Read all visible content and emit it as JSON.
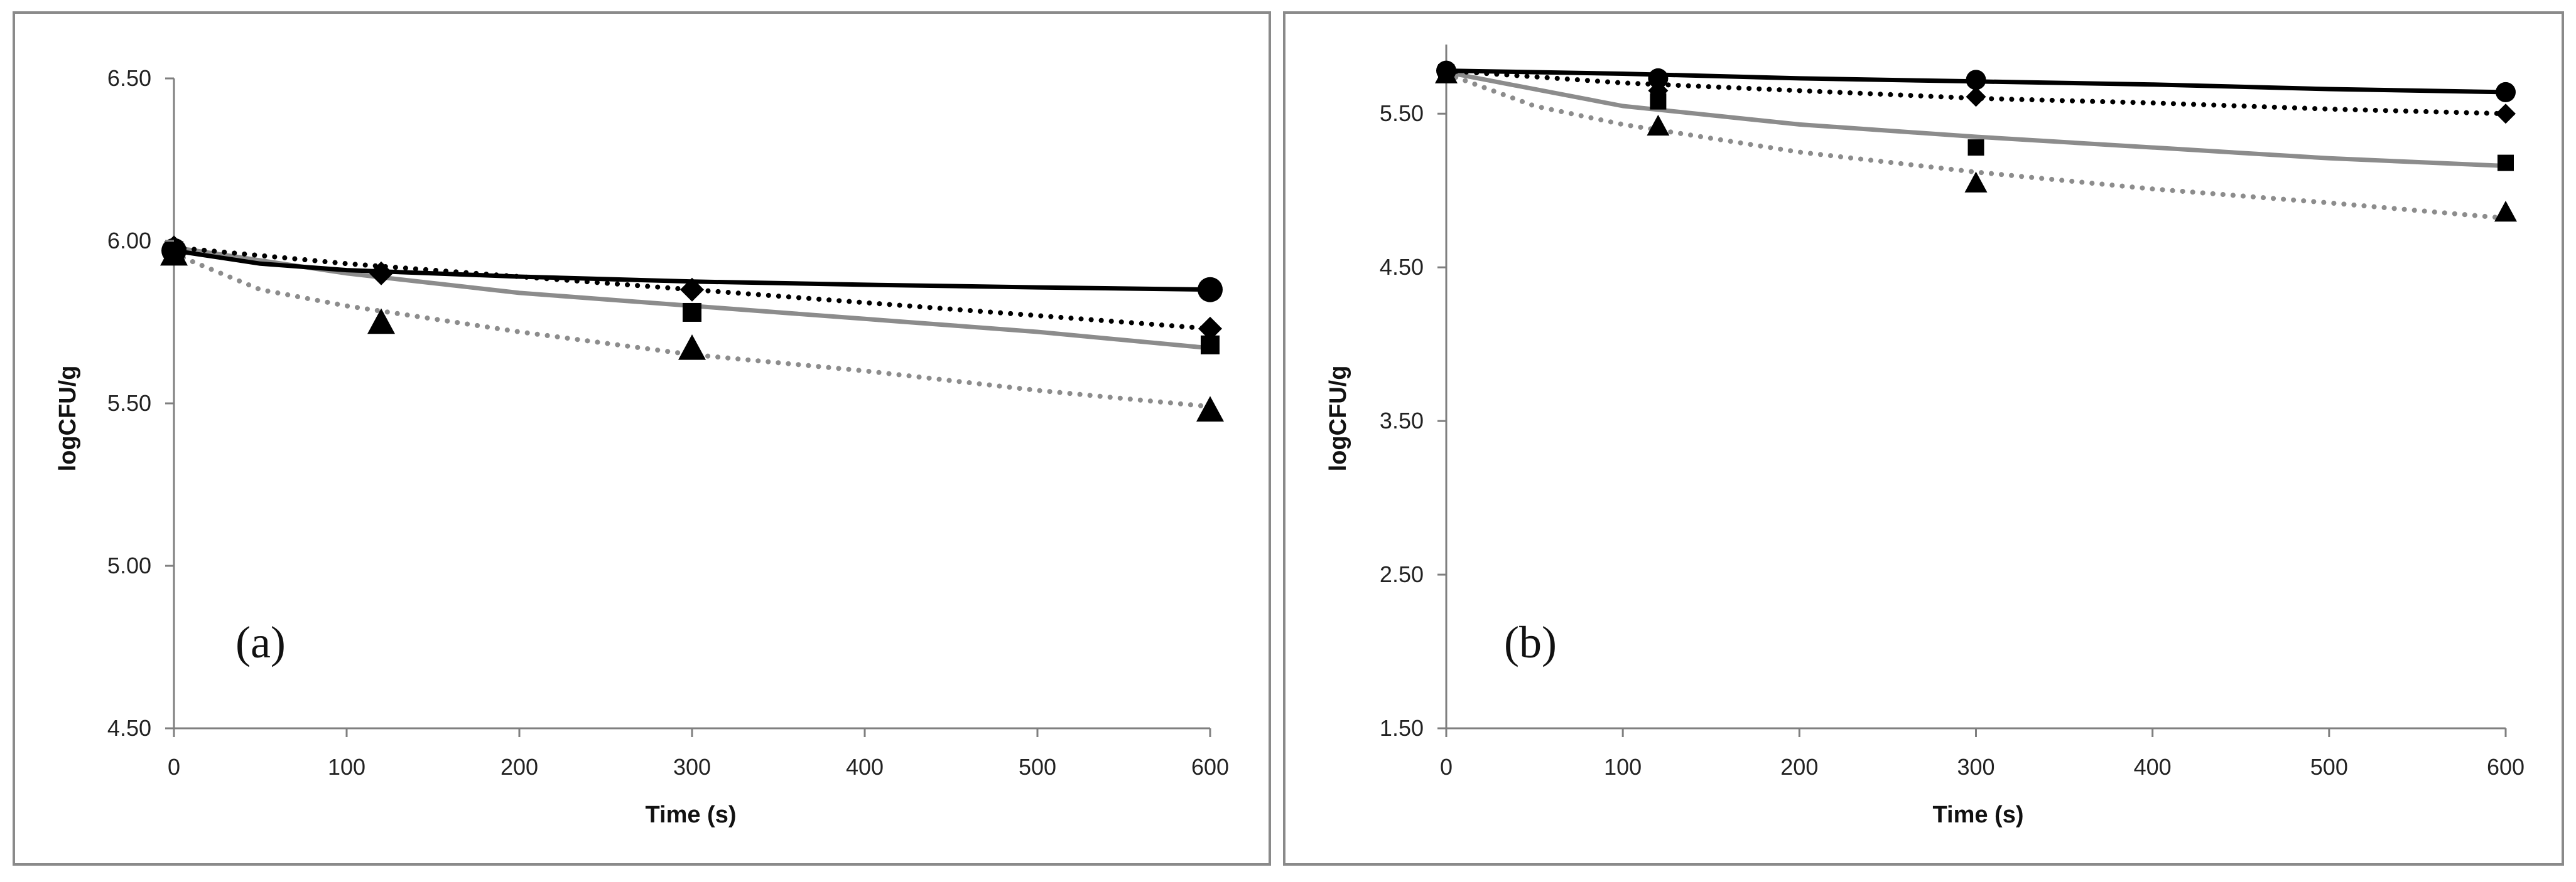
{
  "colors": {
    "black": "#000000",
    "gray": "#8c8c8c",
    "frame": "#8a8a8a",
    "axis": "#7f7f7f"
  },
  "legend_style_note": "Four series: solid black line with circles, dotted black line with diamonds, solid gray line with squares, dotted gray line with triangles",
  "chart_data": [
    {
      "type": "line",
      "panel_label": "(a)",
      "xlabel": "Time (s)",
      "ylabel": "logCFU/g",
      "xlim": [
        0,
        600
      ],
      "ylim": [
        4.5,
        6.5
      ],
      "xticks": [
        "0",
        "100",
        "200",
        "300",
        "400",
        "500",
        "600"
      ],
      "yticks": [
        "4.50",
        "5.00",
        "5.50",
        "6.00",
        "6.50"
      ],
      "series": [
        {
          "name": "circle-series",
          "marker": "circle",
          "line_color": "black",
          "line_style": "solid",
          "points": [
            [
              0,
              5.97
            ],
            [
              600,
              5.85
            ]
          ],
          "curve": [
            [
              0,
              5.97
            ],
            [
              50,
              5.93
            ],
            [
              100,
              5.91
            ],
            [
              150,
              5.9
            ],
            [
              200,
              5.89
            ],
            [
              300,
              5.875
            ],
            [
              400,
              5.865
            ],
            [
              500,
              5.857
            ],
            [
              600,
              5.85
            ]
          ]
        },
        {
          "name": "diamond-series",
          "marker": "diamond",
          "line_color": "black",
          "line_style": "dotted",
          "points": [
            [
              0,
              5.98
            ],
            [
              120,
              5.9
            ],
            [
              300,
              5.85
            ],
            [
              600,
              5.73
            ]
          ],
          "curve": [
            [
              0,
              5.98
            ],
            [
              100,
              5.93
            ],
            [
              200,
              5.89
            ],
            [
              300,
              5.85
            ],
            [
              400,
              5.81
            ],
            [
              500,
              5.77
            ],
            [
              600,
              5.73
            ]
          ]
        },
        {
          "name": "square-series",
          "marker": "square",
          "line_color": "gray",
          "line_style": "solid",
          "points": [
            [
              0,
              5.97
            ],
            [
              300,
              5.78
            ],
            [
              600,
              5.68
            ]
          ],
          "curve": [
            [
              0,
              5.98
            ],
            [
              100,
              5.9
            ],
            [
              200,
              5.84
            ],
            [
              300,
              5.8
            ],
            [
              400,
              5.76
            ],
            [
              500,
              5.72
            ],
            [
              600,
              5.67
            ]
          ]
        },
        {
          "name": "triangle-series",
          "marker": "triangle",
          "line_color": "gray",
          "line_style": "dotted",
          "points": [
            [
              0,
              5.96
            ],
            [
              120,
              5.75
            ],
            [
              300,
              5.67
            ],
            [
              600,
              5.48
            ]
          ],
          "curve": [
            [
              0,
              5.96
            ],
            [
              50,
              5.85
            ],
            [
              100,
              5.8
            ],
            [
              200,
              5.72
            ],
            [
              300,
              5.65
            ],
            [
              400,
              5.6
            ],
            [
              500,
              5.54
            ],
            [
              600,
              5.49
            ]
          ]
        }
      ]
    },
    {
      "type": "line",
      "panel_label": "(b)",
      "xlabel": "Time (s)",
      "ylabel": "logCFU/g",
      "xlim": [
        0,
        600
      ],
      "ylim": [
        1.5,
        5.95
      ],
      "xticks": [
        "0",
        "100",
        "200",
        "300",
        "400",
        "500",
        "600"
      ],
      "yticks": [
        "1.50",
        "2.50",
        "3.50",
        "4.50",
        "5.50"
      ],
      "series": [
        {
          "name": "circle-series",
          "marker": "circle",
          "line_color": "black",
          "line_style": "solid",
          "points": [
            [
              0,
              5.78
            ],
            [
              120,
              5.73
            ],
            [
              300,
              5.72
            ],
            [
              600,
              5.64
            ]
          ],
          "curve": [
            [
              0,
              5.78
            ],
            [
              100,
              5.76
            ],
            [
              200,
              5.73
            ],
            [
              300,
              5.71
            ],
            [
              400,
              5.69
            ],
            [
              500,
              5.66
            ],
            [
              600,
              5.64
            ]
          ]
        },
        {
          "name": "diamond-series",
          "marker": "diamond",
          "line_color": "black",
          "line_style": "dotted",
          "points": [
            [
              0,
              5.78
            ],
            [
              120,
              5.65
            ],
            [
              300,
              5.61
            ],
            [
              600,
              5.5
            ]
          ],
          "curve": [
            [
              0,
              5.78
            ],
            [
              100,
              5.7
            ],
            [
              200,
              5.65
            ],
            [
              300,
              5.6
            ],
            [
              400,
              5.57
            ],
            [
              500,
              5.53
            ],
            [
              600,
              5.5
            ]
          ]
        },
        {
          "name": "square-series",
          "marker": "square",
          "line_color": "gray",
          "line_style": "solid",
          "points": [
            [
              0,
              5.77
            ],
            [
              120,
              5.58
            ],
            [
              300,
              5.28
            ],
            [
              600,
              5.18
            ]
          ],
          "curve": [
            [
              0,
              5.77
            ],
            [
              100,
              5.55
            ],
            [
              200,
              5.43
            ],
            [
              300,
              5.35
            ],
            [
              400,
              5.28
            ],
            [
              500,
              5.21
            ],
            [
              600,
              5.16
            ]
          ]
        },
        {
          "name": "triangle-series",
          "marker": "triangle",
          "line_color": "gray",
          "line_style": "dotted",
          "points": [
            [
              0,
              5.76
            ],
            [
              120,
              5.42
            ],
            [
              300,
              5.05
            ],
            [
              600,
              4.86
            ]
          ],
          "curve": [
            [
              0,
              5.76
            ],
            [
              50,
              5.55
            ],
            [
              100,
              5.43
            ],
            [
              200,
              5.25
            ],
            [
              300,
              5.12
            ],
            [
              400,
              5.01
            ],
            [
              500,
              4.92
            ],
            [
              600,
              4.82
            ]
          ]
        }
      ]
    }
  ]
}
